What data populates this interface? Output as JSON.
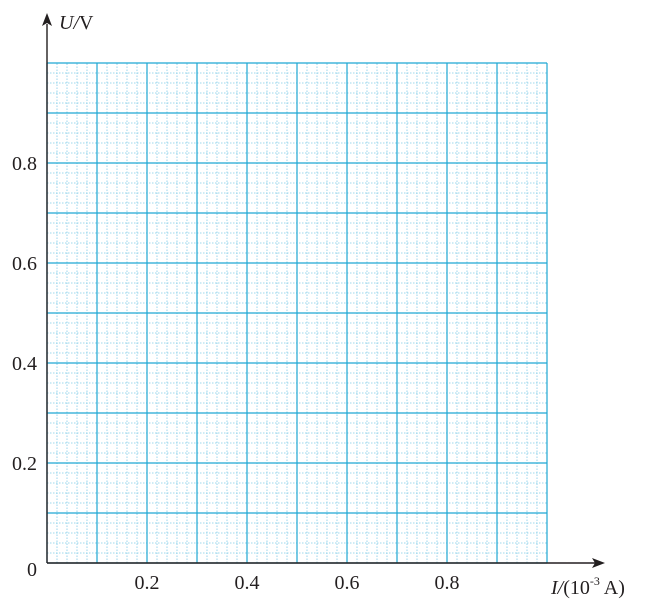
{
  "chart_data": {
    "type": "scatter",
    "title": "",
    "x_axis": {
      "variable": "I",
      "separator": "/",
      "unit_open": "(10",
      "unit_exp": "-3",
      "unit_close": " A)",
      "range": [
        0,
        1.0
      ],
      "major_step": 0.1,
      "minor_step": 0.02,
      "tick_labels": [
        "0.2",
        "0.4",
        "0.6",
        "0.8"
      ],
      "tick_values": [
        0.2,
        0.4,
        0.6,
        0.8
      ]
    },
    "y_axis": {
      "variable": "U",
      "separator": "/",
      "unit": "V",
      "range": [
        0,
        1.0
      ],
      "major_step": 0.1,
      "minor_step": 0.02,
      "tick_labels": [
        "0.2",
        "0.4",
        "0.6",
        "0.8"
      ],
      "tick_values": [
        0.2,
        0.4,
        0.6,
        0.8
      ]
    },
    "origin_label": "0",
    "grid": true,
    "series": [],
    "colors": {
      "grid_major": "#1ea6d3",
      "grid_minor": "#7fcbe8",
      "axis": "#231f20",
      "text": "#231f20"
    }
  }
}
